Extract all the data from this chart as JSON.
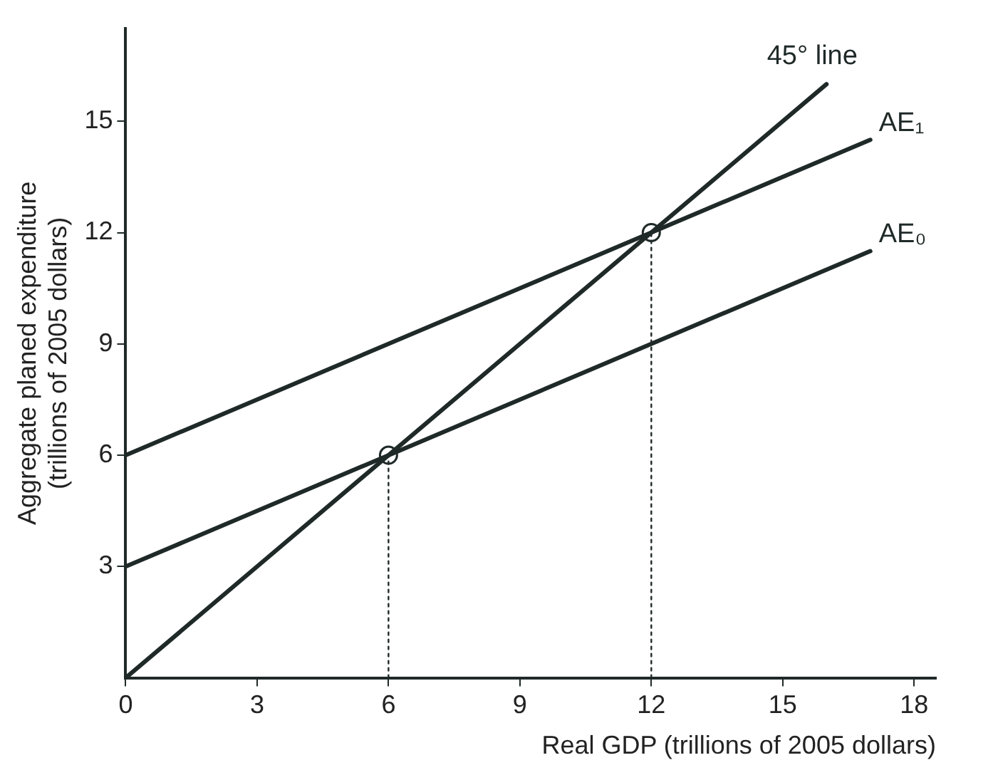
{
  "chart_data": {
    "type": "line",
    "xlabel": "Real GDP (trillions of 2005 dollars)",
    "ylabel": "Aggregate planed expenditure\n(trillions of 2005 dollars)",
    "xlim": [
      0,
      18.5
    ],
    "ylim": [
      0,
      17.5
    ],
    "xticks": [
      0,
      3,
      6,
      9,
      12,
      15,
      18
    ],
    "yticks": [
      3,
      6,
      9,
      12,
      15
    ],
    "grid": false,
    "legend": false,
    "series": [
      {
        "name": "45° line",
        "type": "line",
        "color": "#1f2a28",
        "x": [
          0,
          16
        ],
        "values": [
          0,
          16
        ],
        "marker": "none",
        "line_style": "solid"
      },
      {
        "name": "AE₁",
        "type": "line",
        "color": "#1f2a28",
        "x": [
          0,
          17
        ],
        "values": [
          6,
          14.5
        ],
        "marker": "none",
        "line_style": "solid"
      },
      {
        "name": "AE₀",
        "type": "line",
        "color": "#1f2a28",
        "x": [
          0,
          17
        ],
        "values": [
          3,
          11.5
        ],
        "marker": "none",
        "line_style": "solid"
      },
      {
        "type": "line",
        "color": "#1f2a28",
        "x": [
          6,
          6
        ],
        "values": [
          0,
          6
        ],
        "marker": "none",
        "line_style": "dotted"
      },
      {
        "type": "line",
        "color": "#1f2a28",
        "x": [
          12,
          12
        ],
        "values": [
          0,
          12
        ],
        "marker": "none",
        "line_style": "dotted"
      },
      {
        "type": "scatter",
        "color": "#1f2a28",
        "x": [
          6,
          12
        ],
        "values": [
          6,
          12
        ],
        "marker": "circle"
      }
    ]
  }
}
